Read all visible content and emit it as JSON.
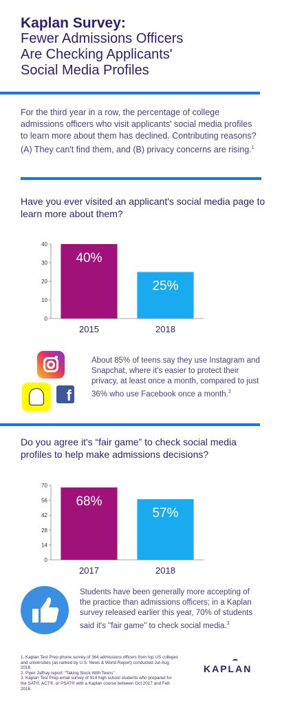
{
  "header": {
    "title_bold": "Kaplan Survey:",
    "title_lines": [
      "Fewer Admissions Officers",
      "Are Checking Applicants'",
      "Social Media Profiles"
    ]
  },
  "intro": {
    "text": "For the third year in a row, the percentage of college admissions officers who visit applicants' social media profiles to learn more about them has declined. Contributing reasons? (A) They can't find them, and (B) privacy concerns are rising.",
    "footnote_ref": "1"
  },
  "section1": {
    "question": "Have you ever visited an applicant's social media page to learn more about them?",
    "side_text": "About 85% of teens say they use Instagram and Snapchat, where it's easier to protect their privacy, at least once a month, compared to just 36% who use Facebook once a month.",
    "footnote_ref": "2",
    "icons": [
      "instagram-icon",
      "snapchat-icon",
      "facebook-icon"
    ]
  },
  "section2": {
    "question": "Do you agree it's “fair game” to check social media profiles to help make admissions decisions?",
    "side_text": "Students have been generally more accepting of the practice than admissions officers; in a Kaplan survey released earlier this year, 70% of students said it's \"fair game\" to check social media.",
    "footnote_ref": "3",
    "icon": "thumbs-up-icon"
  },
  "footnotes": [
    "1. Kaplan Test Prep phone survey of 364 admissions officers from top US colleges and universities (as ranked by U.S. News & World Report) conducted Jul-Aug 2018.",
    "2. Piper Jaffray report: “Taking Stock With Teens”",
    "3. Kaplan Test Prep email survey of 914 high school students who prepared for the SAT®, ACT®, or PSAT® with a Kaplan course between Oct 2017 and Feb 2018."
  ],
  "logo": {
    "text": "KAPLAN"
  },
  "colors": {
    "accent_blue": "#1a73e8",
    "bar_purple": "#a0127a",
    "bar_cyan": "#1aaaf0",
    "text_navy": "#2e1f6b"
  },
  "chart_data": [
    {
      "type": "bar",
      "categories": [
        "2015",
        "2018"
      ],
      "values": [
        40,
        25
      ],
      "value_labels": [
        "40%",
        "25%"
      ],
      "colors": [
        "#a0127a",
        "#1aaaf0"
      ],
      "ylim": [
        0,
        40
      ],
      "yticks": [
        0,
        10,
        20,
        30,
        40
      ],
      "title": "",
      "xlabel": "",
      "ylabel": ""
    },
    {
      "type": "bar",
      "categories": [
        "2017",
        "2018"
      ],
      "values": [
        68,
        57
      ],
      "value_labels": [
        "68%",
        "57%"
      ],
      "colors": [
        "#a0127a",
        "#1aaaf0"
      ],
      "ylim": [
        0,
        70
      ],
      "yticks": [
        0,
        14,
        28,
        42,
        56,
        70
      ],
      "title": "",
      "xlabel": "",
      "ylabel": ""
    }
  ]
}
